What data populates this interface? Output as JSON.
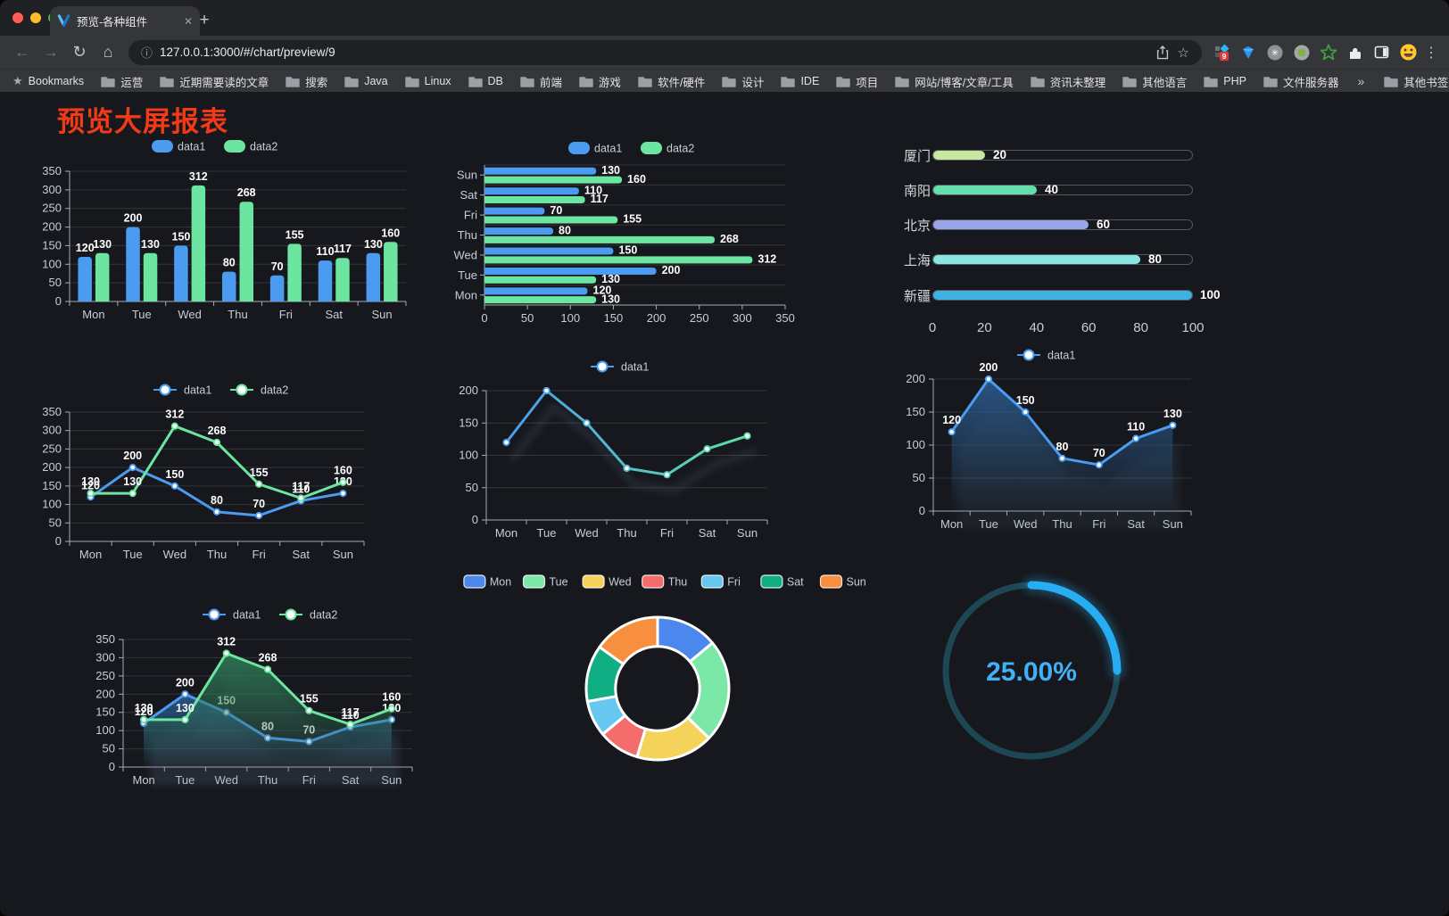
{
  "browser": {
    "tab_title": "预览-各种组件",
    "url": "127.0.0.1:3000/#/chart/preview/9",
    "bookmarks_label": "Bookmarks",
    "bookmarks": [
      "运营",
      "近期需要读的文章",
      "搜索",
      "Java",
      "Linux",
      "DB",
      "前端",
      "游戏",
      "软件/硬件",
      "设计",
      "IDE",
      "项目",
      "网站/博客/文章/工具",
      "资讯未整理",
      "其他语言",
      "PHP",
      "文件服务器"
    ],
    "bookmarks_overflow": "»",
    "other_bookmarks": "其他书签",
    "extension_badge": "9",
    "icons": {
      "close": "✕",
      "new_tab": "+",
      "back": "←",
      "forward": "→",
      "reload": "↻",
      "home": "⌂",
      "info": "ⓘ",
      "star": "☆",
      "bookmarks_star": "★",
      "menu": "⋮"
    }
  },
  "page": {
    "title": "预览大屏报表",
    "title_color": "#F23A16",
    "background": "#16181D"
  },
  "chart_data": [
    {
      "id": "bar-vertical",
      "type": "bar",
      "categories": [
        "Mon",
        "Tue",
        "Wed",
        "Thu",
        "Fri",
        "Sat",
        "Sun"
      ],
      "series": [
        {
          "name": "data1",
          "color": "#4B9BF0",
          "values": [
            120,
            200,
            150,
            80,
            70,
            110,
            130
          ]
        },
        {
          "name": "data2",
          "color": "#6CE5A0",
          "values": [
            130,
            130,
            312,
            268,
            155,
            117,
            160
          ]
        }
      ],
      "ylim": [
        0,
        350
      ],
      "ytick": 50,
      "grid": true,
      "legend_position": "top",
      "show_labels": true
    },
    {
      "id": "bar-horizontal",
      "type": "bar",
      "orientation": "horizontal",
      "categories": [
        "Mon",
        "Tue",
        "Wed",
        "Thu",
        "Fri",
        "Sat",
        "Sun"
      ],
      "series": [
        {
          "name": "data1",
          "color": "#4B9BF0",
          "values": [
            120,
            200,
            150,
            80,
            70,
            110,
            130
          ]
        },
        {
          "name": "data2",
          "color": "#6CE5A0",
          "values": [
            130,
            130,
            312,
            268,
            155,
            117,
            160
          ]
        }
      ],
      "xlim": [
        0,
        350
      ],
      "xtick": 50,
      "grid": true,
      "legend_position": "top",
      "show_labels": true
    },
    {
      "id": "progress-list",
      "type": "bar",
      "orientation": "progress",
      "categories": [
        "厦门",
        "南阳",
        "北京",
        "上海",
        "新疆"
      ],
      "values": [
        20,
        40,
        60,
        80,
        100
      ],
      "colors": [
        "#C8E8A0",
        "#62DFAD",
        "#97A6E9",
        "#8AE4DF",
        "#3FB1E3"
      ],
      "xlim": [
        0,
        100
      ],
      "xticks": [
        0,
        20,
        40,
        60,
        80,
        100
      ]
    },
    {
      "id": "line-two",
      "type": "line",
      "categories": [
        "Mon",
        "Tue",
        "Wed",
        "Thu",
        "Fri",
        "Sat",
        "Sun"
      ],
      "series": [
        {
          "name": "data1",
          "color": "#4B9BF0",
          "values": [
            120,
            200,
            150,
            80,
            70,
            110,
            130
          ]
        },
        {
          "name": "data2",
          "color": "#6CE5A0",
          "values": [
            130,
            130,
            312,
            268,
            155,
            117,
            160
          ]
        }
      ],
      "ylim": [
        0,
        350
      ],
      "ytick": 50,
      "grid": true,
      "legend_position": "top",
      "show_labels": true
    },
    {
      "id": "line-gradient",
      "type": "line",
      "categories": [
        "Mon",
        "Tue",
        "Wed",
        "Thu",
        "Fri",
        "Sat",
        "Sun"
      ],
      "series": [
        {
          "name": "data1",
          "gradient": [
            "#4B9BF0",
            "#5FDFA3"
          ],
          "values": [
            120,
            200,
            150,
            80,
            70,
            110,
            130
          ]
        }
      ],
      "ylim": [
        0,
        200
      ],
      "ytick": 50,
      "grid": true,
      "legend_position": "top",
      "show_labels": false
    },
    {
      "id": "area-single",
      "type": "area",
      "categories": [
        "Mon",
        "Tue",
        "Wed",
        "Thu",
        "Fri",
        "Sat",
        "Sun"
      ],
      "series": [
        {
          "name": "data1",
          "color": "#4B9BF0",
          "area_color": "#2B5B8F",
          "values": [
            120,
            200,
            150,
            80,
            70,
            110,
            130
          ]
        }
      ],
      "ylim": [
        0,
        200
      ],
      "ytick": 50,
      "grid": true,
      "legend_position": "top",
      "show_labels": true
    },
    {
      "id": "area-two",
      "type": "area",
      "categories": [
        "Mon",
        "Tue",
        "Wed",
        "Thu",
        "Fri",
        "Sat",
        "Sun"
      ],
      "series": [
        {
          "name": "data1",
          "color": "#4B9BF0",
          "area_color": "#2B5B8F",
          "values": [
            120,
            200,
            150,
            80,
            70,
            110,
            130
          ]
        },
        {
          "name": "data2",
          "color": "#6CE5A0",
          "area_color": "#2E7A57",
          "values": [
            130,
            130,
            312,
            268,
            155,
            117,
            160
          ]
        }
      ],
      "ylim": [
        0,
        350
      ],
      "ytick": 50,
      "grid": true,
      "legend_position": "top",
      "show_labels": true
    },
    {
      "id": "donut",
      "type": "pie",
      "categories": [
        "Mon",
        "Tue",
        "Wed",
        "Thu",
        "Fri",
        "Sat",
        "Sun"
      ],
      "values": [
        120,
        200,
        150,
        80,
        70,
        110,
        130
      ],
      "colors": [
        "#4C87ED",
        "#7BE8A8",
        "#F5D35A",
        "#F56C6C",
        "#66C7F0",
        "#0FAE83",
        "#F78F3F"
      ],
      "legend_position": "top",
      "inner_radius_ratio": 0.59
    },
    {
      "id": "gauge",
      "type": "gauge",
      "percent": 25,
      "label": "25.00%",
      "color": "#27AEF2",
      "track_color": "#1D4752",
      "text_color": "#42B0F4"
    }
  ]
}
